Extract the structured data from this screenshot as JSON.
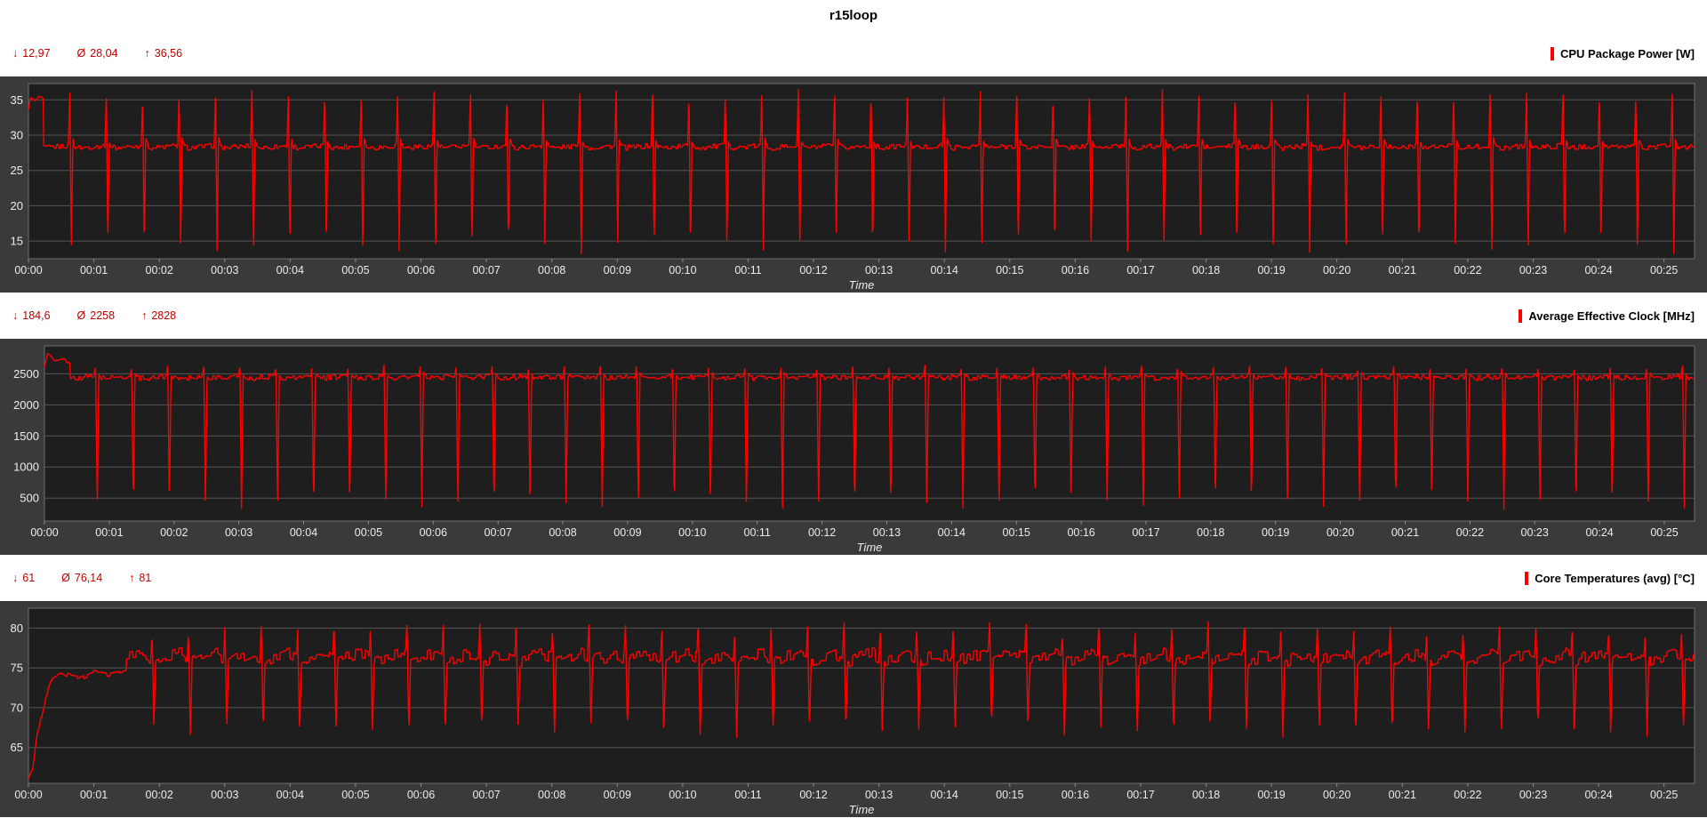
{
  "title": "r15loop",
  "icons": {
    "min": "↓",
    "avg": "Ø",
    "max": "↑"
  },
  "colors": {
    "series": "#ff0000",
    "stats_text": "#c00000",
    "panel": "#3a3a3a",
    "plot_bg": "#1e1e1e",
    "grid": "#555555",
    "tick_text": "#ececec"
  },
  "charts": [
    {
      "name": "CPU Package Power [W]",
      "stats_display": {
        "min": "12,97",
        "avg": "28,04",
        "max": "36,56"
      }
    },
    {
      "name": "Average Effective Clock [MHz]",
      "stats_display": {
        "min": "184,6",
        "avg": "2258",
        "max": "2828"
      }
    },
    {
      "name": "Core Temperatures (avg) [°C]",
      "stats_display": {
        "min": "61",
        "avg": "76,14",
        "max": "81"
      }
    }
  ],
  "chart_data": [
    {
      "type": "line",
      "title": "CPU Package Power [W]",
      "series_color": "#ff0000",
      "stats": {
        "min": 12.97,
        "avg": 28.04,
        "max": 36.56
      },
      "xlabel": "Time",
      "x_ticks": [
        "00:00",
        "00:01",
        "00:02",
        "00:03",
        "00:04",
        "00:05",
        "00:06",
        "00:07",
        "00:08",
        "00:09",
        "00:10",
        "00:11",
        "00:12",
        "00:13",
        "00:14",
        "00:15",
        "00:16",
        "00:17",
        "00:18",
        "00:19",
        "00:20",
        "00:21",
        "00:22",
        "00:23",
        "00:24",
        "00:25"
      ],
      "x_tick_interval_s": 60,
      "duration_s": 1528,
      "y_ticks": [
        15,
        20,
        25,
        30,
        35
      ],
      "ylim": [
        12.5,
        37.3
      ],
      "grid": true,
      "legend_position": "top-right",
      "seed": 1,
      "pattern": {
        "period_s": 33.4,
        "noise": 0.35,
        "noise_step": 2,
        "cycle": [
          [
            0,
            28.2
          ],
          [
            0.68,
            28.5
          ],
          [
            0.72,
            36.4
          ],
          [
            0.76,
            13.3
          ],
          [
            0.8,
            29.4
          ],
          [
            0.86,
            28.4
          ],
          [
            1,
            28.2
          ]
        ],
        "warmup": [
          [
            0,
            33.5
          ],
          [
            2,
            35.4
          ],
          [
            6,
            34.8
          ],
          [
            10,
            35.5
          ],
          [
            14,
            35.0
          ]
        ]
      }
    },
    {
      "type": "line",
      "title": "Average Effective Clock [MHz]",
      "series_color": "#ff0000",
      "stats": {
        "min": 184.6,
        "avg": 2258,
        "max": 2828
      },
      "xlabel": "Time",
      "x_ticks": [
        "00:00",
        "00:01",
        "00:02",
        "00:03",
        "00:04",
        "00:05",
        "00:06",
        "00:07",
        "00:08",
        "00:09",
        "00:10",
        "00:11",
        "00:12",
        "00:13",
        "00:14",
        "00:15",
        "00:16",
        "00:17",
        "00:18",
        "00:19",
        "00:20",
        "00:21",
        "00:22",
        "00:23",
        "00:24",
        "00:25"
      ],
      "x_tick_interval_s": 60,
      "duration_s": 1528,
      "y_ticks": [
        500,
        1000,
        1500,
        2000,
        2500
      ],
      "ylim": [
        130,
        2950
      ],
      "grid": true,
      "legend_position": "top-right",
      "seed": 2,
      "pattern": {
        "period_s": 33.4,
        "noise": 40,
        "noise_step": 2,
        "cycle": [
          [
            0,
            2430
          ],
          [
            0.66,
            2460
          ],
          [
            0.7,
            2620
          ],
          [
            0.745,
            320
          ],
          [
            0.79,
            2500
          ],
          [
            0.86,
            2440
          ],
          [
            1,
            2430
          ]
        ],
        "warmup": [
          [
            0,
            2620
          ],
          [
            3,
            2828
          ],
          [
            10,
            2700
          ],
          [
            18,
            2740
          ],
          [
            24,
            2650
          ]
        ]
      }
    },
    {
      "type": "line",
      "title": "Core Temperatures (avg) [°C]",
      "series_color": "#ff0000",
      "stats": {
        "min": 61,
        "avg": 76.14,
        "max": 81
      },
      "xlabel": "Time",
      "x_ticks": [
        "00:00",
        "00:01",
        "00:02",
        "00:03",
        "00:04",
        "00:05",
        "00:06",
        "00:07",
        "00:08",
        "00:09",
        "00:10",
        "00:11",
        "00:12",
        "00:13",
        "00:14",
        "00:15",
        "00:16",
        "00:17",
        "00:18",
        "00:19",
        "00:20",
        "00:21",
        "00:22",
        "00:23",
        "00:24",
        "00:25"
      ],
      "x_tick_interval_s": 60,
      "duration_s": 1528,
      "y_ticks": [
        65,
        70,
        75,
        80
      ],
      "ylim": [
        60.5,
        82.5
      ],
      "grid": true,
      "legend_position": "top-right",
      "seed": 3,
      "pattern": {
        "period_s": 33.4,
        "noise": 0.8,
        "noise_step": 3,
        "cycle": [
          [
            0,
            76.2
          ],
          [
            0.5,
            76.8
          ],
          [
            0.66,
            76.3
          ],
          [
            0.7,
            80.2
          ],
          [
            0.75,
            66.8
          ],
          [
            0.8,
            75.8
          ],
          [
            1,
            76.2
          ]
        ],
        "warmup": [
          [
            0,
            61
          ],
          [
            4,
            62.5
          ],
          [
            8,
            66.5
          ],
          [
            12,
            69
          ],
          [
            16,
            71.5
          ],
          [
            22,
            73.8
          ],
          [
            30,
            74.3
          ],
          [
            45,
            73.6
          ],
          [
            60,
            74.4
          ],
          [
            75,
            74.0
          ],
          [
            90,
            74.8
          ]
        ]
      }
    }
  ]
}
